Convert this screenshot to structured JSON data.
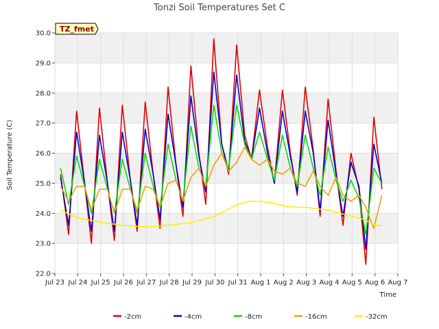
{
  "chart_data": {
    "type": "line",
    "title": "Tonzi Soil Temperatures Set C",
    "xlabel": "Time",
    "ylabel": "Soil Temperature (C)",
    "badge": "TZ_fmet",
    "ylim": [
      22.0,
      30.0
    ],
    "xlim": [
      0,
      15
    ],
    "y_ticks": [
      "22.0",
      "23.0",
      "24.0",
      "25.0",
      "26.0",
      "27.0",
      "28.0",
      "29.0",
      "30.0"
    ],
    "x_ticks": [
      "Jul 23",
      "Jul 24",
      "Jul 25",
      "Jul 26",
      "Jul 27",
      "Jul 28",
      "Jul 29",
      "Jul 30",
      "Jul 31",
      "Aug 1",
      "Aug 2",
      "Aug 3",
      "Aug 4",
      "Aug 5",
      "Aug 6",
      "Aug 7"
    ],
    "legend_position": "bottom",
    "grid": true,
    "series": [
      {
        "name": "-2cm",
        "color": "#e00000",
        "x": [
          0.25,
          0.6,
          0.95,
          1.3,
          1.6,
          1.95,
          2.3,
          2.6,
          2.95,
          3.3,
          3.6,
          3.95,
          4.3,
          4.6,
          4.95,
          5.3,
          5.6,
          5.95,
          6.3,
          6.6,
          6.95,
          7.3,
          7.6,
          7.95,
          8.3,
          8.6,
          8.95,
          9.3,
          9.6,
          9.95,
          10.3,
          10.6,
          10.95,
          11.3,
          11.6,
          11.95,
          12.3,
          12.6,
          12.95,
          13.3,
          13.6,
          13.95,
          14.3,
          14.6,
          14.95
        ],
        "values": [
          25.3,
          23.3,
          27.4,
          25.0,
          23.0,
          27.5,
          25.0,
          23.1,
          27.6,
          25.1,
          23.4,
          27.7,
          25.3,
          23.5,
          28.2,
          25.6,
          23.9,
          28.9,
          26.0,
          24.3,
          29.8,
          26.3,
          25.3,
          29.6,
          26.6,
          25.8,
          28.1,
          26.2,
          25.0,
          28.1,
          26.0,
          24.6,
          28.2,
          26.1,
          23.9,
          27.8,
          25.4,
          23.6,
          26.0,
          24.8,
          22.3,
          27.2,
          24.8,
          null,
          null
        ]
      },
      {
        "name": "-4cm",
        "color": "#0000cc",
        "x": [
          0.25,
          0.6,
          0.95,
          1.3,
          1.6,
          1.95,
          2.3,
          2.6,
          2.95,
          3.3,
          3.6,
          3.95,
          4.3,
          4.6,
          4.95,
          5.3,
          5.6,
          5.95,
          6.3,
          6.6,
          6.95,
          7.3,
          7.6,
          7.95,
          8.3,
          8.6,
          8.95,
          9.3,
          9.6,
          9.95,
          10.3,
          10.6,
          10.95,
          11.3,
          11.6,
          11.95,
          12.3,
          12.6,
          12.95,
          13.3,
          13.6,
          13.95,
          14.3
        ],
        "values": [
          25.2,
          23.6,
          26.7,
          25.0,
          23.4,
          26.6,
          25.0,
          23.4,
          26.7,
          25.1,
          23.6,
          26.8,
          25.3,
          23.8,
          27.3,
          25.6,
          24.2,
          27.9,
          25.9,
          24.7,
          28.7,
          26.3,
          25.4,
          28.6,
          26.4,
          25.8,
          27.5,
          26.0,
          25.0,
          27.4,
          25.9,
          24.7,
          27.4,
          26.0,
          24.1,
          27.1,
          25.3,
          23.9,
          25.7,
          24.9,
          22.8,
          26.3,
          25.0
        ]
      },
      {
        "name": "-8cm",
        "color": "#00dd00",
        "x": [
          0.25,
          0.6,
          0.95,
          1.3,
          1.6,
          1.95,
          2.3,
          2.6,
          2.95,
          3.3,
          3.6,
          3.95,
          4.3,
          4.6,
          4.95,
          5.3,
          5.6,
          5.95,
          6.3,
          6.6,
          6.95,
          7.3,
          7.6,
          7.95,
          8.3,
          8.6,
          8.95,
          9.3,
          9.6,
          9.95,
          10.3,
          10.6,
          10.95,
          11.3,
          11.6,
          11.95,
          12.3,
          12.6,
          12.95,
          13.3,
          13.6,
          13.95,
          14.3
        ],
        "values": [
          25.5,
          24.3,
          25.9,
          24.9,
          24.0,
          25.8,
          24.8,
          24.0,
          25.8,
          24.8,
          24.0,
          26.0,
          24.9,
          24.2,
          26.3,
          25.1,
          24.4,
          26.9,
          25.5,
          24.9,
          27.6,
          26.0,
          25.5,
          27.6,
          26.3,
          25.8,
          26.7,
          25.8,
          25.1,
          26.6,
          25.5,
          24.9,
          26.6,
          25.5,
          24.6,
          26.2,
          25.1,
          24.4,
          25.1,
          24.5,
          23.3,
          25.5,
          25.0
        ]
      },
      {
        "name": "-16cm",
        "color": "#f0a000",
        "x": [
          0.25,
          0.6,
          0.95,
          1.3,
          1.6,
          1.95,
          2.3,
          2.6,
          2.95,
          3.3,
          3.6,
          3.95,
          4.3,
          4.6,
          4.95,
          5.3,
          5.6,
          5.95,
          6.3,
          6.6,
          6.95,
          7.3,
          7.6,
          7.95,
          8.3,
          8.6,
          8.95,
          9.3,
          9.6,
          9.95,
          10.3,
          10.6,
          10.95,
          11.3,
          11.6,
          11.95,
          12.3,
          12.6,
          12.95,
          13.3,
          13.6,
          13.95,
          14.3
        ],
        "values": [
          24.9,
          24.4,
          24.9,
          24.9,
          24.1,
          24.8,
          24.8,
          24.0,
          24.8,
          24.8,
          24.1,
          24.9,
          24.8,
          24.2,
          25.0,
          25.1,
          24.4,
          25.2,
          25.5,
          24.9,
          25.6,
          26.0,
          25.4,
          25.7,
          26.2,
          25.8,
          25.6,
          25.8,
          25.4,
          25.3,
          25.5,
          25.0,
          24.9,
          25.4,
          24.9,
          24.6,
          25.2,
          24.6,
          24.4,
          24.6,
          24.2,
          23.5,
          24.6
        ]
      },
      {
        "name": "-32cm",
        "color": "#ffee00",
        "x": [
          0.25,
          1.0,
          2.0,
          3.0,
          4.0,
          5.0,
          6.0,
          7.0,
          7.5,
          8.0,
          8.5,
          9.0,
          9.5,
          10.0,
          10.5,
          11.0,
          11.5,
          12.0,
          12.5,
          13.0,
          13.5,
          14.0,
          14.3
        ],
        "values": [
          24.1,
          23.85,
          23.7,
          23.6,
          23.55,
          23.6,
          23.7,
          23.9,
          24.1,
          24.3,
          24.4,
          24.4,
          24.35,
          24.25,
          24.2,
          24.2,
          24.15,
          24.1,
          24.0,
          23.9,
          23.8,
          23.6,
          23.6
        ]
      }
    ]
  }
}
